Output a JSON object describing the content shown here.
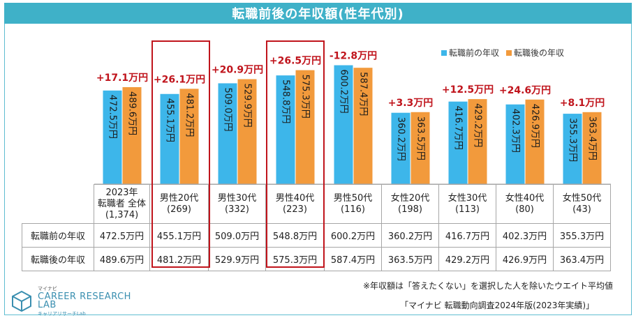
{
  "title": "転職前後の年収額(性年代別)",
  "legend": {
    "before": "転職前の年収",
    "after": "転職後の年収"
  },
  "colors": {
    "before": "#3db6ea",
    "after": "#f29a3c",
    "diff": "#c0141c",
    "title_bg": "#3fb1c8"
  },
  "chart_data": {
    "type": "bar",
    "title": "転職前後の年収額(性年代別)",
    "unit": "万円",
    "ylim": [
      0,
      700
    ],
    "categories": [
      "2023年 転職者 全体",
      "男性20代",
      "男性30代",
      "男性40代",
      "男性50代",
      "女性20代",
      "女性30代",
      "女性40代",
      "女性50代"
    ],
    "series": [
      {
        "name": "転職前の年収",
        "values": [
          472.5,
          455.1,
          509.0,
          548.8,
          600.2,
          360.2,
          416.7,
          402.3,
          355.3
        ]
      },
      {
        "name": "転職後の年収",
        "values": [
          489.6,
          481.2,
          529.9,
          575.3,
          587.4,
          363.5,
          429.2,
          426.9,
          363.4
        ]
      }
    ],
    "bar_labels_before": [
      "472.5万円",
      "455.1万円",
      "509.0万円",
      "548.8万円",
      "600.2万円",
      "360.2万円",
      "416.7万円",
      "402.3万円",
      "355.3万円"
    ],
    "bar_labels_after": [
      "489.6万円",
      "481.2万円",
      "529.9万円",
      "575.3万円",
      "587.4万円",
      "363.5万円",
      "429.2万円",
      "426.9万円",
      "363.4万円"
    ],
    "differences": [
      "+17.1万円",
      "+26.1万円",
      "+20.9万円",
      "+26.5万円",
      "-12.8万円",
      "+3.3万円",
      "+12.5万円",
      "+24.6万円",
      "+8.1万円"
    ],
    "highlighted_categories": [
      "男性20代",
      "男性40代"
    ]
  },
  "table": {
    "headers": [
      {
        "line1": "2023年",
        "line2": "転職者 全体",
        "line3": "(1,374)"
      },
      {
        "line1": "男性20代",
        "line2": "(269)"
      },
      {
        "line1": "男性30代",
        "line2": "(332)"
      },
      {
        "line1": "男性40代",
        "line2": "(223)"
      },
      {
        "line1": "男性50代",
        "line2": "(116)"
      },
      {
        "line1": "女性20代",
        "line2": "(198)"
      },
      {
        "line1": "女性30代",
        "line2": "(113)"
      },
      {
        "line1": "女性40代",
        "line2": "(80)"
      },
      {
        "line1": "女性50代",
        "line2": "(43)"
      }
    ],
    "rows": [
      {
        "label": "転職前の年収",
        "cells": [
          "472.5万円",
          "455.1万円",
          "509.0万円",
          "548.8万円",
          "600.2万円",
          "360.2万円",
          "416.7万円",
          "402.3万円",
          "355.3万円"
        ]
      },
      {
        "label": "転職後の年収",
        "cells": [
          "489.6万円",
          "481.2万円",
          "529.9万円",
          "575.3万円",
          "587.4万円",
          "363.5万円",
          "429.2万円",
          "426.9万円",
          "363.4万円"
        ]
      }
    ]
  },
  "notes": {
    "note1": "※年収額は「答えたくない」を選択した人を除いたウエイト平均値",
    "source": "「マイナビ 転職動向調査2024年版(2023年実績)」"
  },
  "logo": {
    "small": "マイナビ",
    "big": "CAREER RESEARCH",
    "lab": "LAB",
    "sub": "キャリアリサーチLab"
  }
}
